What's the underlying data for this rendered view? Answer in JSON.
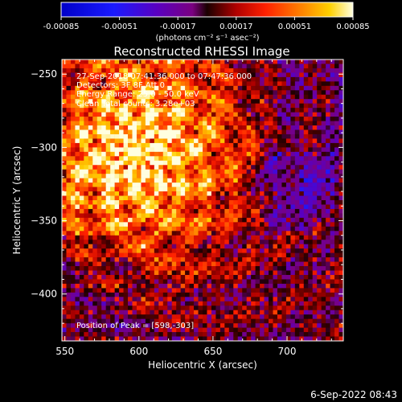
{
  "colorbar": {
    "tick_labels": [
      "-0.00085",
      "-0.00051",
      "-0.00017",
      "0.00017",
      "0.00051",
      "0.00085"
    ],
    "unit_label": "(photons cm⁻² s⁻¹ asec⁻²)",
    "range": [
      -0.00085,
      0.00085
    ]
  },
  "chart_data": {
    "type": "heatmap",
    "title": "Reconstructed RHESSI Image",
    "xlabel": "Heliocentric X (arcsec)",
    "ylabel": "Heliocentric Y (arcsec)",
    "xlim": [
      548,
      738
    ],
    "ylim": [
      -432,
      -240
    ],
    "x_ticks": [
      550,
      600,
      650,
      700
    ],
    "y_ticks": [
      -250,
      -300,
      -350,
      -400
    ],
    "annotations": [
      "27-Sep-2018 07:41:36.000 to 07:47:36.000",
      "Detectors: 3F 8F Att 0",
      "Energy Range: 25.0 - 50.0 keV",
      "Clean    Total counts: 3.28e+03"
    ],
    "peak_label": "Position of Peak = [598,-303]",
    "peak": [
      598,
      -303
    ]
  },
  "footer": {
    "timestamp": "6-Sep-2022 08:43"
  }
}
